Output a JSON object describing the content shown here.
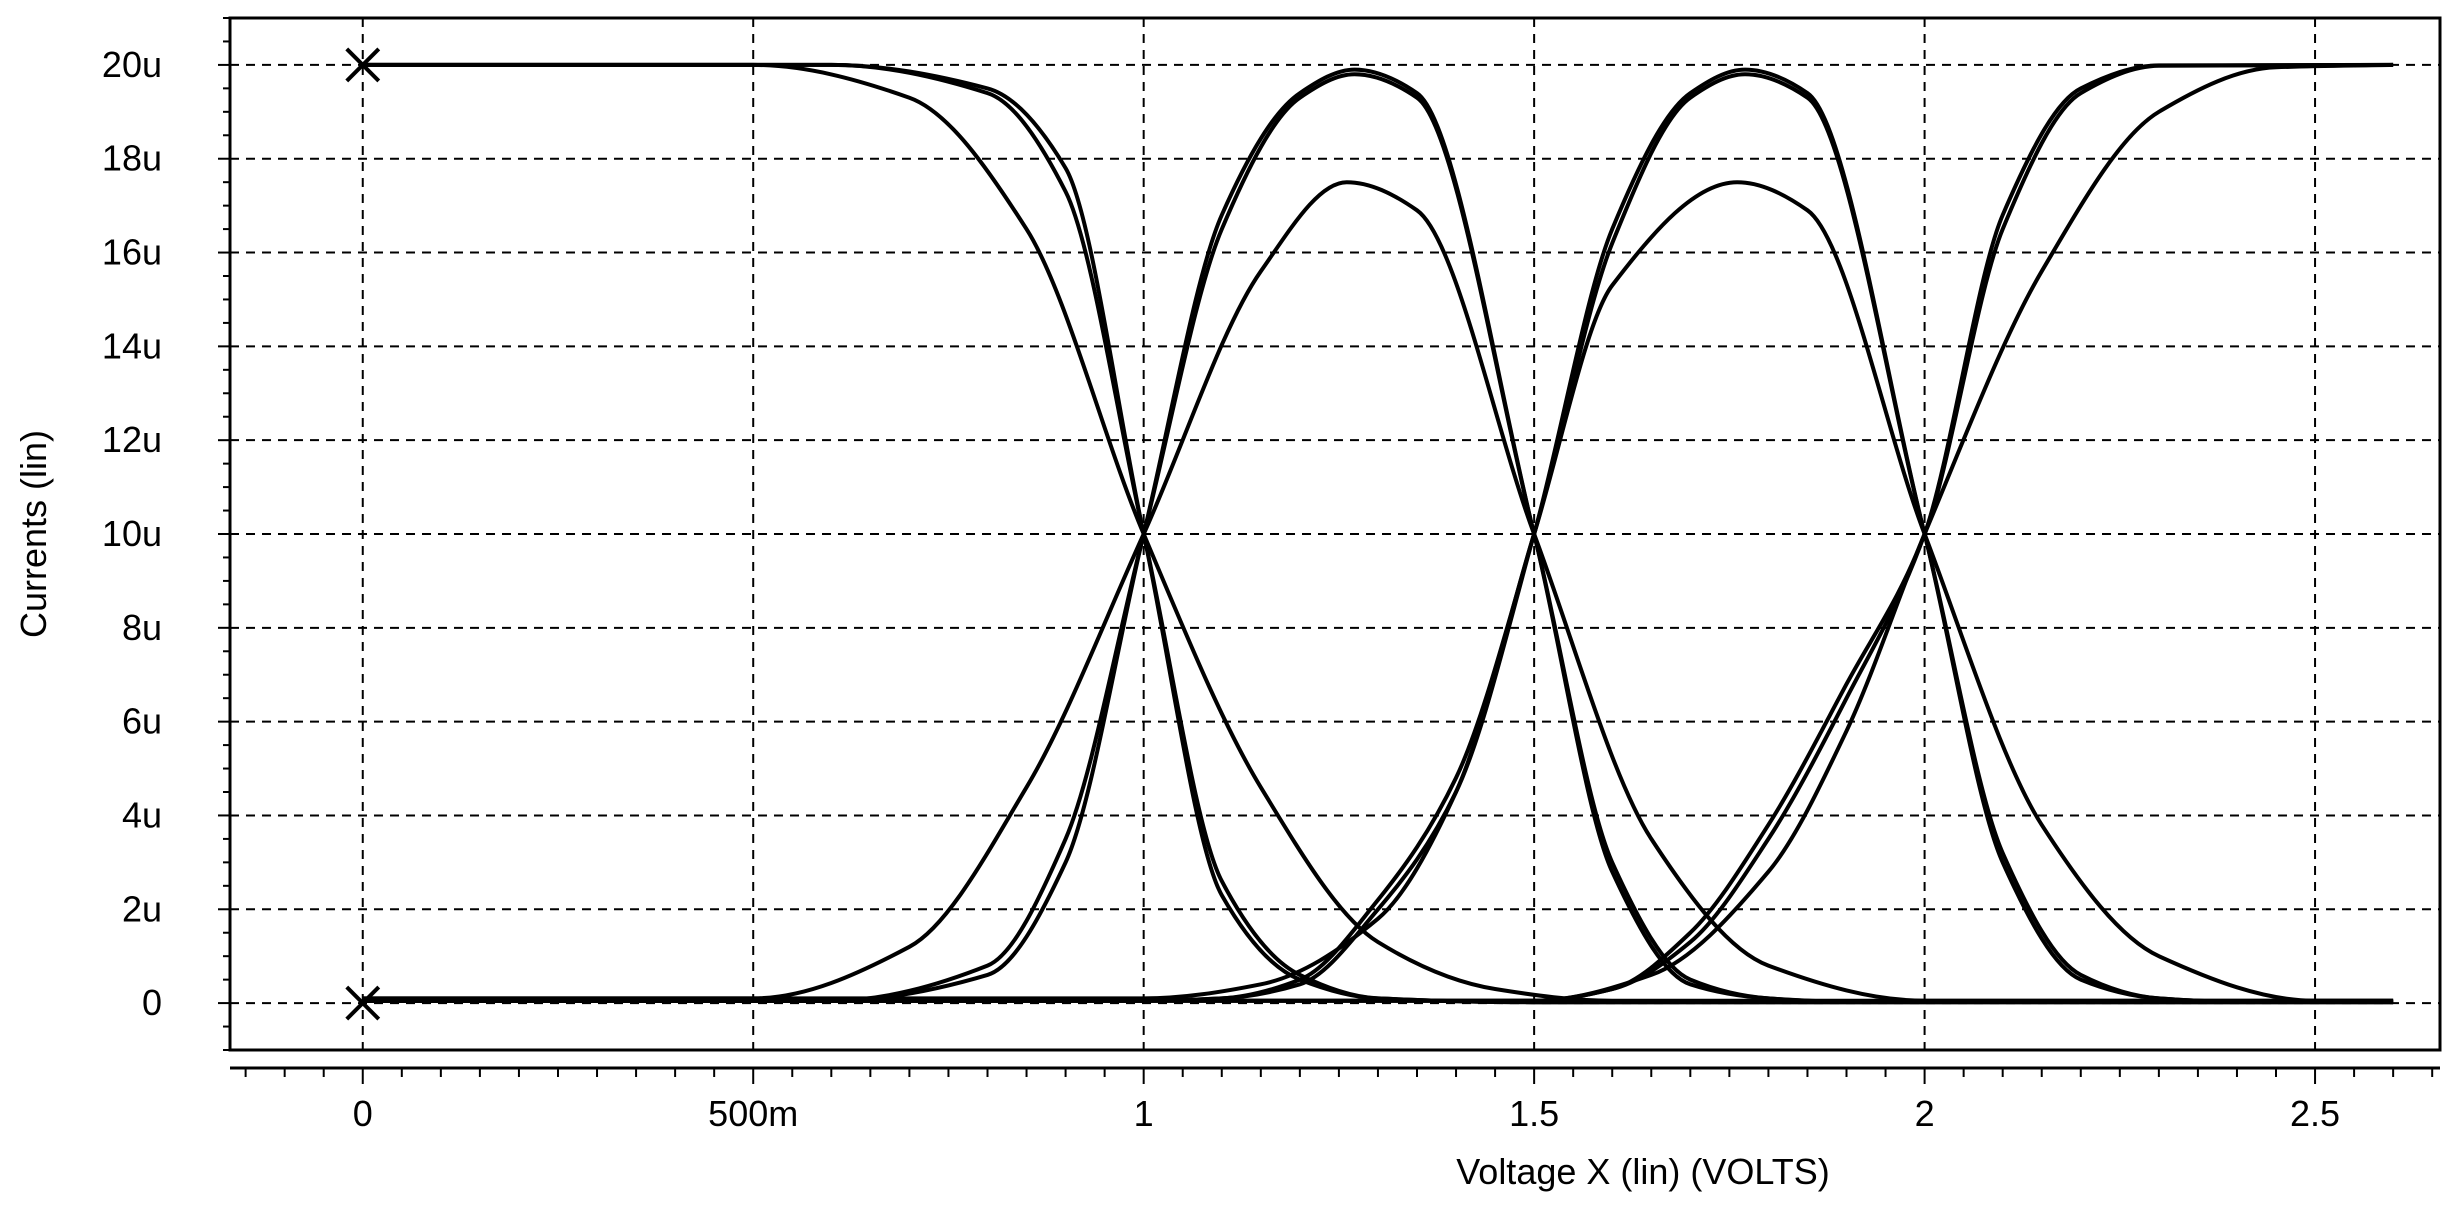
{
  "chart_data": {
    "type": "line",
    "xlabel": "Voltage X (lin) (VOLTS)",
    "ylabel": "Currents (lin)",
    "xlim": [
      -0.17,
      2.66
    ],
    "ylim": [
      -1.0,
      21.0
    ],
    "x_ticks": [
      {
        "value": 0,
        "label": "0"
      },
      {
        "value": 0.5,
        "label": "500m"
      },
      {
        "value": 1.0,
        "label": "1"
      },
      {
        "value": 1.5,
        "label": "1.5"
      },
      {
        "value": 2.0,
        "label": "2"
      },
      {
        "value": 2.5,
        "label": "2.5"
      }
    ],
    "y_ticks": [
      {
        "value": 0,
        "label": "0"
      },
      {
        "value": 2,
        "label": "2u"
      },
      {
        "value": 4,
        "label": "4u"
      },
      {
        "value": 6,
        "label": "6u"
      },
      {
        "value": 8,
        "label": "8u"
      },
      {
        "value": 10,
        "label": "10u"
      },
      {
        "value": 12,
        "label": "12u"
      },
      {
        "value": 14,
        "label": "14u"
      },
      {
        "value": 16,
        "label": "16u"
      },
      {
        "value": 18,
        "label": "18u"
      },
      {
        "value": 20,
        "label": "20u"
      }
    ],
    "grid": true,
    "markers": [
      {
        "x": 0,
        "y": 20,
        "symbol": "x"
      },
      {
        "x": 0,
        "y": 0,
        "symbol": "x"
      }
    ],
    "series": [
      {
        "x": [
          0,
          0.6,
          0.8,
          0.9,
          1.0,
          1.1,
          1.2,
          1.3,
          1.5,
          2.6
        ],
        "values": [
          20,
          20,
          19.4,
          17.3,
          10.0,
          2.6,
          0.6,
          0.1,
          0.02,
          0.02
        ]
      },
      {
        "x": [
          0,
          0.6,
          0.8,
          0.9,
          1.0,
          1.1,
          1.2,
          1.3,
          1.5,
          2.6
        ],
        "values": [
          20,
          20,
          19.5,
          17.8,
          10.0,
          2.3,
          0.5,
          0.1,
          0.02,
          0.02
        ]
      },
      {
        "x": [
          0,
          0.5,
          0.7,
          0.85,
          1.0,
          1.15,
          1.3,
          1.45,
          1.6,
          2.6
        ],
        "values": [
          20,
          20,
          19.3,
          16.5,
          10.0,
          4.6,
          1.3,
          0.3,
          0.05,
          0.05
        ]
      },
      {
        "x": [
          0,
          0.6,
          0.8,
          0.9,
          1.0,
          1.1,
          1.2,
          1.27,
          1.35,
          1.5,
          1.6,
          1.7,
          1.8,
          1.9,
          2.6
        ],
        "values": [
          0.05,
          0.05,
          0.8,
          3.5,
          10.0,
          16.5,
          19.3,
          19.8,
          19.3,
          10.0,
          3.0,
          0.5,
          0.1,
          0.03,
          0.03
        ]
      },
      {
        "x": [
          0,
          0.6,
          0.8,
          0.9,
          1.0,
          1.1,
          1.2,
          1.27,
          1.35,
          1.5,
          1.6,
          1.7,
          1.8,
          1.9,
          2.6
        ],
        "values": [
          0.05,
          0.05,
          0.6,
          3.0,
          10.0,
          16.8,
          19.4,
          19.9,
          19.4,
          10.0,
          2.8,
          0.4,
          0.1,
          0.03,
          0.03
        ]
      },
      {
        "x": [
          0,
          0.5,
          0.7,
          0.85,
          1.0,
          1.15,
          1.26,
          1.35,
          1.5,
          1.65,
          1.8,
          2.0,
          2.6
        ],
        "values": [
          0.1,
          0.1,
          1.2,
          4.6,
          10.0,
          15.6,
          17.5,
          16.9,
          10.0,
          3.5,
          0.8,
          0.05,
          0.05
        ]
      },
      {
        "x": [
          0,
          1.0,
          1.1,
          1.2,
          1.3,
          1.4,
          1.5,
          1.6,
          1.7,
          1.77,
          1.85,
          2.0,
          2.1,
          2.2,
          2.3,
          2.4,
          2.6
        ],
        "values": [
          0.05,
          0.05,
          0.1,
          0.5,
          2.2,
          4.8,
          10.0,
          16.2,
          19.3,
          19.8,
          19.3,
          10.0,
          3.2,
          0.6,
          0.1,
          0.03,
          0.03
        ]
      },
      {
        "x": [
          0,
          1.0,
          1.1,
          1.2,
          1.3,
          1.4,
          1.5,
          1.6,
          1.7,
          1.77,
          1.85,
          2.0,
          2.1,
          2.2,
          2.3,
          2.4,
          2.6
        ],
        "values": [
          0.05,
          0.05,
          0.1,
          0.4,
          2.0,
          4.5,
          10.0,
          16.5,
          19.4,
          19.9,
          19.4,
          10.0,
          3.0,
          0.5,
          0.1,
          0.03,
          0.03
        ]
      },
      {
        "x": [
          0,
          1.0,
          1.15,
          1.3,
          1.4,
          1.5,
          1.6,
          1.76,
          1.85,
          2.0,
          2.15,
          2.3,
          2.5,
          2.6
        ],
        "values": [
          0.1,
          0.1,
          0.4,
          1.8,
          4.5,
          10.0,
          15.3,
          17.5,
          16.9,
          10.0,
          3.8,
          1.0,
          0.05,
          0.05
        ]
      },
      {
        "x": [
          0,
          1.5,
          1.6,
          1.7,
          1.8,
          1.9,
          2.0,
          2.1,
          2.2,
          2.3,
          2.6
        ],
        "values": [
          0.05,
          0.05,
          0.3,
          1.5,
          3.8,
          6.8,
          10.0,
          16.5,
          19.4,
          19.98,
          20
        ]
      },
      {
        "x": [
          0,
          1.5,
          1.6,
          1.7,
          1.8,
          1.9,
          2.0,
          2.1,
          2.2,
          2.3,
          2.6
        ],
        "values": [
          0.05,
          0.05,
          0.3,
          1.3,
          3.5,
          6.5,
          10.0,
          16.8,
          19.5,
          19.99,
          20
        ]
      },
      {
        "x": [
          0,
          1.5,
          1.65,
          1.8,
          1.9,
          2.0,
          2.15,
          2.3,
          2.45,
          2.6
        ],
        "values": [
          0.05,
          0.05,
          0.6,
          2.8,
          5.8,
          10.0,
          15.6,
          19.0,
          19.95,
          20
        ]
      }
    ]
  }
}
